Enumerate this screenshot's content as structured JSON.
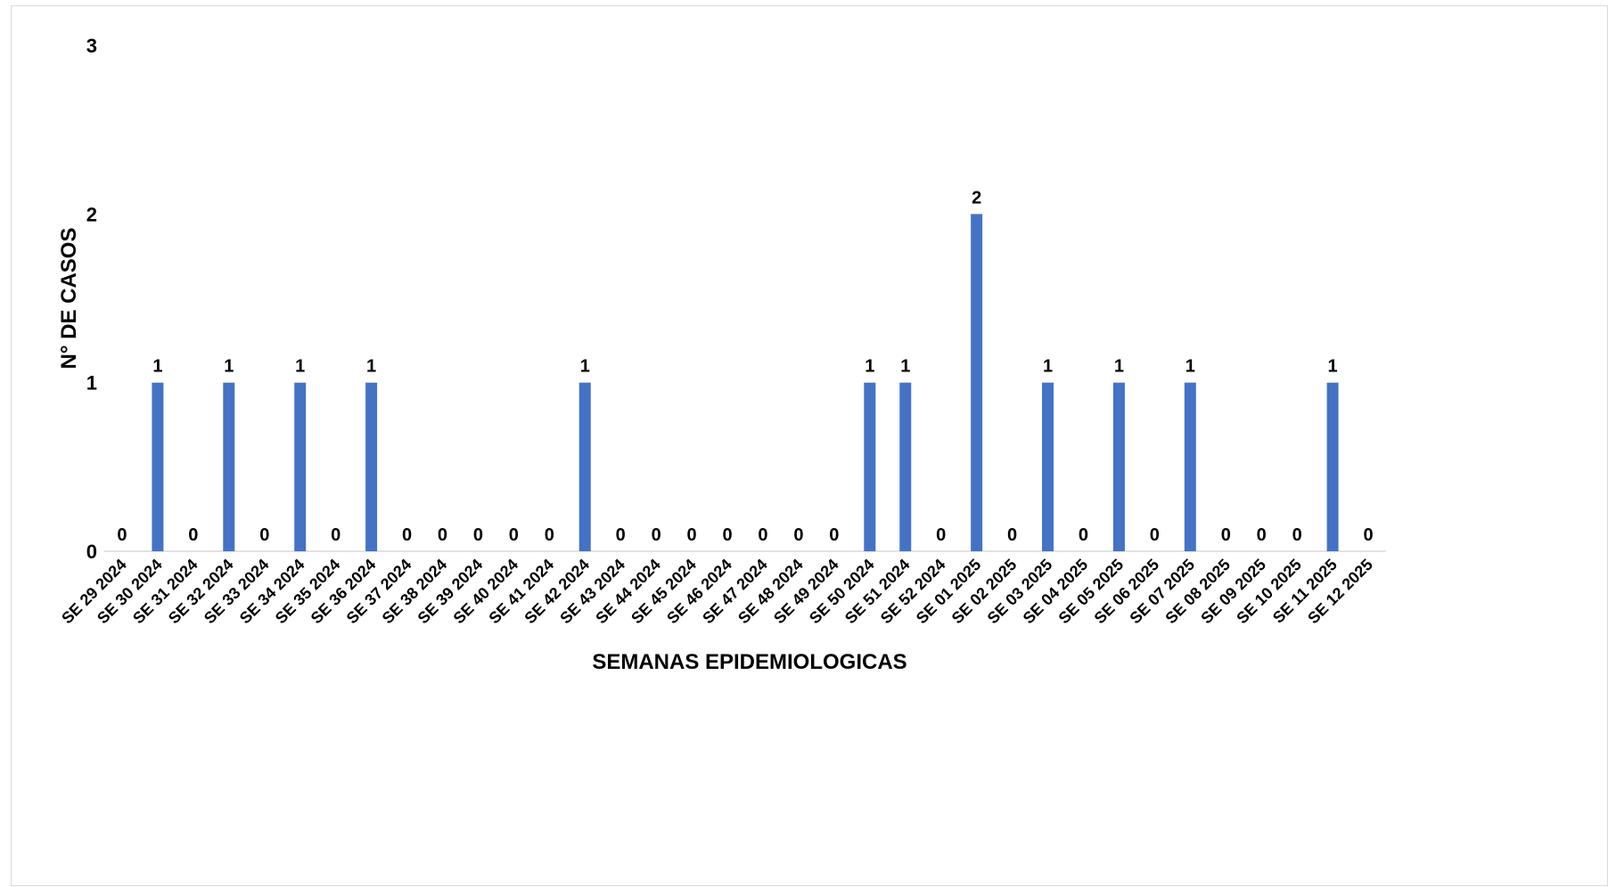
{
  "chart_data": {
    "type": "bar",
    "title": "",
    "xlabel": "SEMANAS EPIDEMIOLOGICAS",
    "ylabel": "N° DE CASOS",
    "ylim": [
      0,
      3
    ],
    "yticks": [
      "0",
      "1",
      "2",
      "3"
    ],
    "grid": false,
    "legend": "none",
    "bar_color": "#4472C4",
    "axis_color": "#d9d9d9",
    "categories": [
      "SE 29 2024",
      "SE 30 2024",
      "SE 31 2024",
      "SE 32 2024",
      "SE 33 2024",
      "SE 34 2024",
      "SE 35 2024",
      "SE 36 2024",
      "SE 37 2024",
      "SE 38 2024",
      "SE 39 2024",
      "SE 40 2024",
      "SE 41 2024",
      "SE 42 2024",
      "SE 43 2024",
      "SE 44 2024",
      "SE 45 2024",
      "SE 46 2024",
      "SE 47 2024",
      "SE 48 2024",
      "SE 49 2024",
      "SE 50 2024",
      "SE 51 2024",
      "SE 52 2024",
      "SE 01 2025",
      "SE 02 2025",
      "SE 03 2025",
      "SE 04 2025",
      "SE 05 2025",
      "SE 06 2025",
      "SE 07 2025",
      "SE 08 2025",
      "SE 09 2025",
      "SE 10 2025",
      "SE 11 2025",
      "SE 12 2025"
    ],
    "values": [
      0,
      1,
      0,
      1,
      0,
      1,
      0,
      1,
      0,
      0,
      0,
      0,
      0,
      1,
      0,
      0,
      0,
      0,
      0,
      0,
      0,
      1,
      1,
      0,
      2,
      0,
      1,
      0,
      1,
      0,
      1,
      0,
      0,
      0,
      1,
      0
    ]
  }
}
